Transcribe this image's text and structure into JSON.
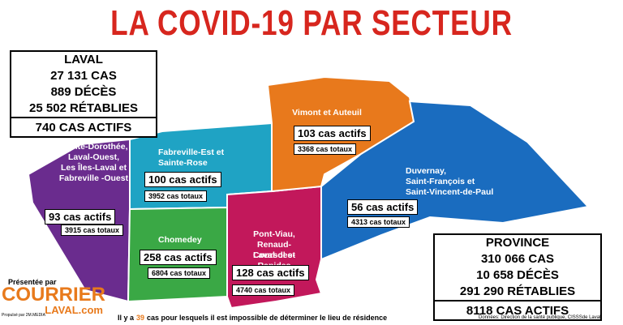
{
  "title": "LA COVID-19 PAR SECTEUR",
  "laval": {
    "name": "LAVAL",
    "lines": [
      "27 131 CAS",
      "889 DÉCÈS",
      "25 502 RÉTABLIES"
    ],
    "active": "740 CAS ACTIFS"
  },
  "province": {
    "name": "PROVINCE",
    "lines": [
      "310 066 CAS",
      "10 658 DÉCÈS",
      "291 290 RÉTABLIES"
    ],
    "active": "8118 CAS ACTIFS"
  },
  "sectors": [
    {
      "name": [
        "Sainte-Dorothée,",
        "Laval-Ouest,",
        "Les Îles-Laval et",
        "Fabreville -Ouest"
      ],
      "active": "93 cas actifs",
      "total": "3915 cas totaux"
    },
    {
      "name": [
        "Fabreville-Est et",
        "Sainte-Rose"
      ],
      "active": "100 cas actifs",
      "total": "3952 cas totaux"
    },
    {
      "name": [
        "Chomedey"
      ],
      "active": "258 cas actifs",
      "total": "6804 cas totaux"
    },
    {
      "name": [
        "Pont-Viau,",
        "Renaud-Coursol et",
        "Laval-des-Rapides"
      ],
      "active": "128 cas actifs",
      "total": "4740 cas totaux"
    },
    {
      "name": [
        "Vimont et Auteuil"
      ],
      "active": "103 cas actifs",
      "total": "3368 cas totaux"
    },
    {
      "name": [
        "Duvernay,",
        "Saint-François et",
        "Saint-Vincent-de-Paul"
      ],
      "active": "56 cas actifs",
      "total": "4313 cas totaux"
    }
  ],
  "footer_note": {
    "before": "Il y a",
    "number": "39",
    "after": "cas pour lesquels il est impossible de déterminer le lieu de résidence"
  },
  "source": "Données: Direction de la santé publique, CISSSde Laval",
  "branding": {
    "presented": "Présentée par",
    "logo_top": "COURRIER",
    "logo_bottom": "LAVAL.com",
    "powered": "Propulsé par 2M.MEDIA"
  }
}
